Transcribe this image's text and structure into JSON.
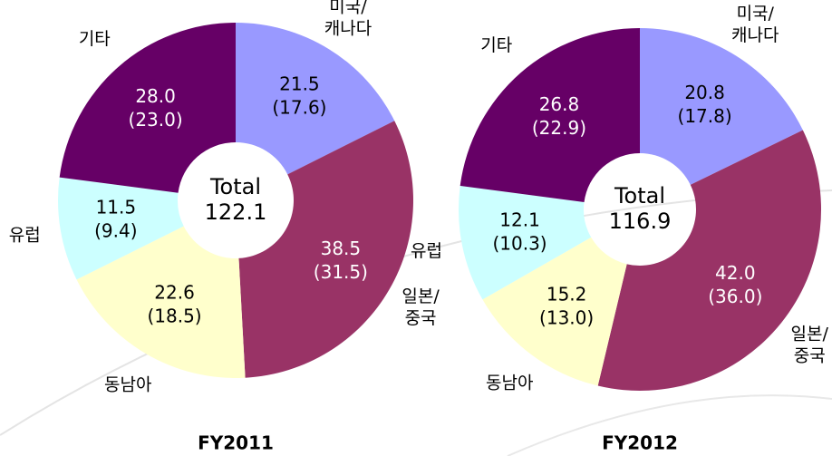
{
  "chart_data": [
    {
      "type": "donut",
      "title": "FY2011",
      "center_label": "Total",
      "total": 122.1,
      "categories": [
        [
          "미국/",
          "캐나다"
        ],
        [
          "일본/",
          "중국"
        ],
        [
          "동남아"
        ],
        [
          "유럽"
        ],
        [
          "기타"
        ]
      ],
      "values": [
        21.5,
        38.5,
        22.6,
        11.5,
        28.0
      ],
      "value_labels": [
        "21.5",
        "38.5",
        "22.6",
        "11.5",
        "28.0"
      ],
      "shares": [
        17.6,
        31.5,
        18.5,
        9.4,
        23.0
      ],
      "share_labels": [
        "(17.6)",
        "(31.5)",
        "(18.5)",
        "(9.4)",
        "(23.0)"
      ],
      "colors": [
        "#9999ff",
        "#993366",
        "#ffffcc",
        "#ccffff",
        "#660066"
      ]
    },
    {
      "type": "donut",
      "title": "FY2012",
      "center_label": "Total",
      "total": 116.9,
      "categories": [
        [
          "미국/",
          "캐나다"
        ],
        [
          "일본/",
          "중국"
        ],
        [
          "동남아"
        ],
        [
          "유럽"
        ],
        [
          "기타"
        ]
      ],
      "values": [
        20.8,
        42.0,
        15.2,
        12.1,
        26.8
      ],
      "value_labels": [
        "20.8",
        "42.0",
        "15.2",
        "12.1",
        "26.8"
      ],
      "shares": [
        17.8,
        36.0,
        13.0,
        10.3,
        22.9
      ],
      "share_labels": [
        "(17.8)",
        "(36.0)",
        "(13.0)",
        "(10.3)",
        "(22.9)"
      ],
      "colors": [
        "#9999ff",
        "#993366",
        "#ffffcc",
        "#ccffff",
        "#660066"
      ]
    }
  ]
}
